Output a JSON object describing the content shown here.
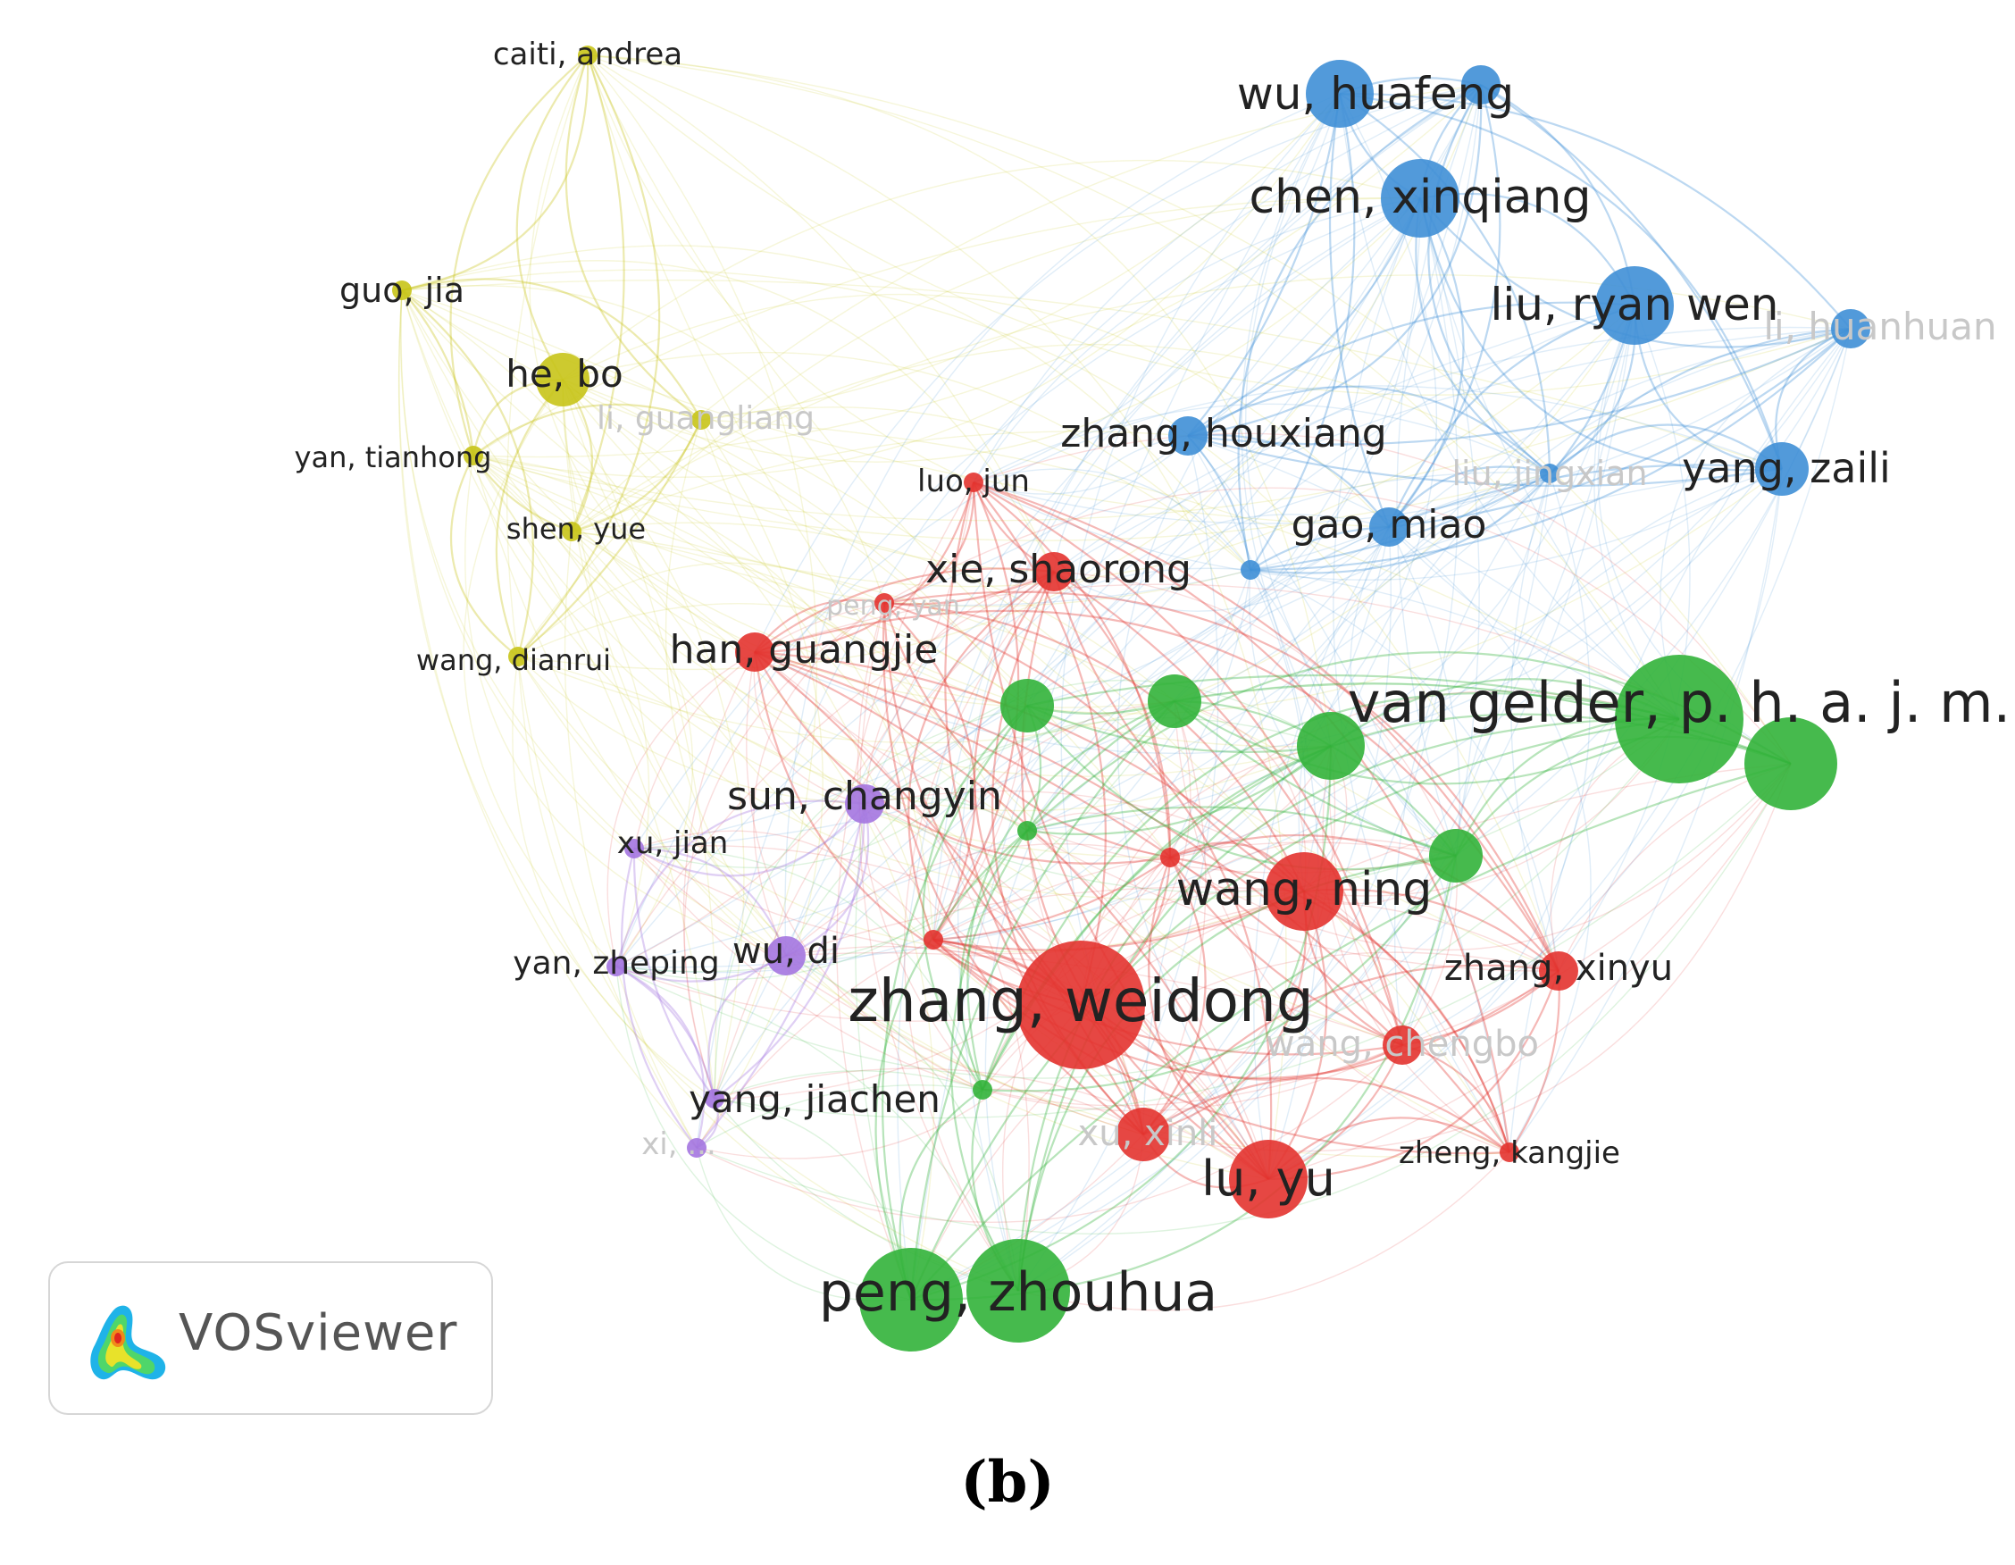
{
  "colors": {
    "red": "#e3332f",
    "green": "#32b33a",
    "blue": "#3f8fd6",
    "yellow": "#c8c418",
    "purple": "#a476e0"
  },
  "nodes": [
    {
      "id": "caiti",
      "label": "caiti, andrea",
      "cluster": "yellow",
      "weight": 1,
      "faint": false
    },
    {
      "id": "guojia",
      "label": "guo, jia",
      "cluster": "yellow",
      "weight": 1,
      "faint": false
    },
    {
      "id": "hebo",
      "label": "he, bo",
      "cluster": "yellow",
      "weight": 3,
      "faint": false
    },
    {
      "id": "liguangliang",
      "label": "li, guangliang",
      "cluster": "yellow",
      "weight": 1,
      "faint": true
    },
    {
      "id": "yantianhong",
      "label": "yan, tianhong",
      "cluster": "yellow",
      "weight": 1,
      "faint": false
    },
    {
      "id": "shenyue",
      "label": "shen, yue",
      "cluster": "yellow",
      "weight": 1,
      "faint": false
    },
    {
      "id": "wangdianrui",
      "label": "wang, dianrui",
      "cluster": "yellow",
      "weight": 1,
      "faint": false
    },
    {
      "id": "wuhuafeng",
      "label": "wu, huafeng",
      "cluster": "blue",
      "weight": 4,
      "faint": false
    },
    {
      "id": "blue2",
      "label": "",
      "cluster": "blue",
      "weight": 2,
      "faint": false
    },
    {
      "id": "chenxinqiang",
      "label": "chen, xinqiang",
      "cluster": "blue",
      "weight": 5,
      "faint": false
    },
    {
      "id": "liuryanwen",
      "label": "liu, ryan wen",
      "cluster": "blue",
      "weight": 5,
      "faint": false
    },
    {
      "id": "lihuanhuan",
      "label": "li, huanhuan",
      "cluster": "blue",
      "weight": 2,
      "faint": true
    },
    {
      "id": "zhanghouxiang",
      "label": "zhang, houxiang",
      "cluster": "blue",
      "weight": 2,
      "faint": false
    },
    {
      "id": "liujingxian",
      "label": "liu, jingxian",
      "cluster": "blue",
      "weight": 1,
      "faint": true
    },
    {
      "id": "yangzaili",
      "label": "yang, zaili",
      "cluster": "blue",
      "weight": 3,
      "faint": false
    },
    {
      "id": "gaomiao",
      "label": "gao, miao",
      "cluster": "blue",
      "weight": 2,
      "faint": false
    },
    {
      "id": "blue_small",
      "label": "",
      "cluster": "blue",
      "weight": 1,
      "faint": false
    },
    {
      "id": "luojun",
      "label": "luo, jun",
      "cluster": "red",
      "weight": 1,
      "faint": false
    },
    {
      "id": "xieshaorong",
      "label": "xie, shaorong",
      "cluster": "red",
      "weight": 2,
      "faint": false
    },
    {
      "id": "pengyan",
      "label": "peng, yan",
      "cluster": "red",
      "weight": 1,
      "faint": true
    },
    {
      "id": "hanguangjie",
      "label": "han, guangjie",
      "cluster": "red",
      "weight": 2,
      "faint": false
    },
    {
      "id": "wangning",
      "label": "wang, ning",
      "cluster": "red",
      "weight": 5,
      "faint": false
    },
    {
      "id": "zhangweidong",
      "label": "zhang, weidong",
      "cluster": "red",
      "weight": 10,
      "faint": false
    },
    {
      "id": "zhangxinyu",
      "label": "zhang, xinyu",
      "cluster": "red",
      "weight": 2,
      "faint": false
    },
    {
      "id": "wangchengbo",
      "label": "wang, chengbo",
      "cluster": "red",
      "weight": 2,
      "faint": true
    },
    {
      "id": "xuxinli",
      "label": "xu, xinli",
      "cluster": "red",
      "weight": 3,
      "faint": true
    },
    {
      "id": "luyu",
      "label": "lu, yu",
      "cluster": "red",
      "weight": 5,
      "faint": false
    },
    {
      "id": "zhengkangjie",
      "label": "zheng, kangjie",
      "cluster": "red",
      "weight": 1,
      "faint": false
    },
    {
      "id": "red_small1",
      "label": "",
      "cluster": "red",
      "weight": 1,
      "faint": false
    },
    {
      "id": "red_small2",
      "label": "",
      "cluster": "red",
      "weight": 1,
      "faint": false
    },
    {
      "id": "vangelder",
      "label": "van gelder, p. h. a. j. m.",
      "cluster": "green",
      "weight": 9,
      "faint": false
    },
    {
      "id": "green_r",
      "label": "",
      "cluster": "green",
      "weight": 6,
      "faint": false
    },
    {
      "id": "green_a",
      "label": "",
      "cluster": "green",
      "weight": 3,
      "faint": false
    },
    {
      "id": "green_b",
      "label": "",
      "cluster": "green",
      "weight": 3,
      "faint": false
    },
    {
      "id": "green_c",
      "label": "",
      "cluster": "green",
      "weight": 4,
      "faint": false
    },
    {
      "id": "green_d",
      "label": "",
      "cluster": "green",
      "weight": 3,
      "faint": false
    },
    {
      "id": "green_e",
      "label": "",
      "cluster": "green",
      "weight": 1,
      "faint": false
    },
    {
      "id": "green_f",
      "label": "",
      "cluster": "green",
      "weight": 1,
      "faint": true
    },
    {
      "id": "pengzhouhua",
      "label": "peng, zhouhua",
      "cluster": "green",
      "weight": 7,
      "faint": false
    },
    {
      "id": "green_g",
      "label": "",
      "cluster": "green",
      "weight": 7,
      "faint": false
    },
    {
      "id": "sunchangyin",
      "label": "sun, changyin",
      "cluster": "purple",
      "weight": 2,
      "faint": false
    },
    {
      "id": "xujian",
      "label": "xu, jian",
      "cluster": "purple",
      "weight": 1,
      "faint": false
    },
    {
      "id": "yanzheping",
      "label": "yan, zheping",
      "cluster": "purple",
      "weight": 1,
      "faint": false
    },
    {
      "id": "wudi",
      "label": "wu, di",
      "cluster": "purple",
      "weight": 2,
      "faint": false
    },
    {
      "id": "yangjiachen",
      "label": "yang, jiachen",
      "cluster": "purple",
      "weight": 1,
      "faint": false
    },
    {
      "id": "xi",
      "label": "xi, ...",
      "cluster": "purple",
      "weight": 1,
      "faint": true
    }
  ],
  "badge": {
    "label": "VOSviewer"
  },
  "caption": "(b)"
}
